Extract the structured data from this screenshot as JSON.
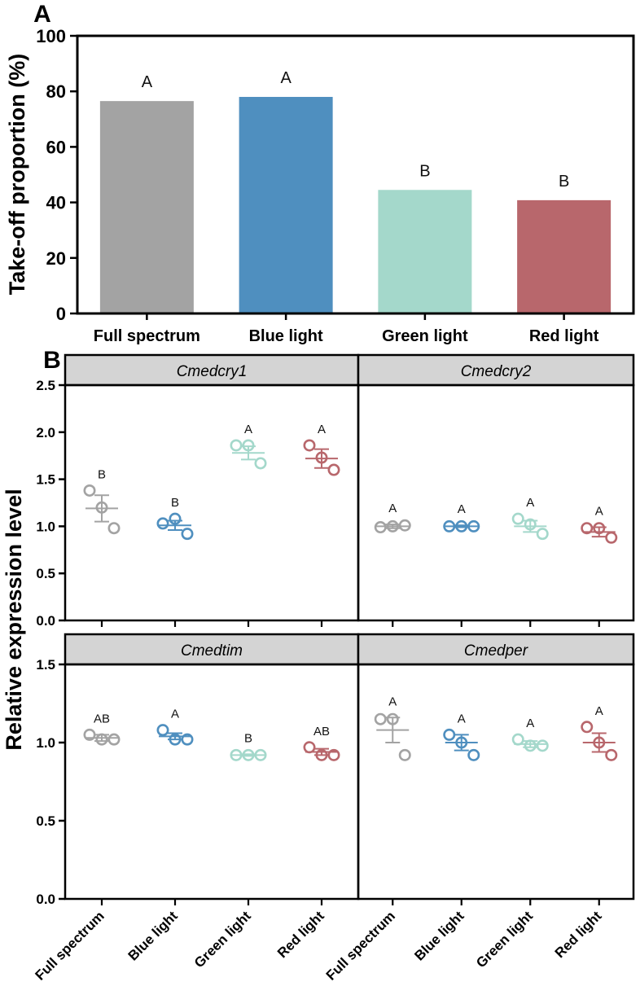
{
  "chart_data": [
    {
      "id": "A",
      "panel_label": "A",
      "type": "bar",
      "ylabel": "Take-off proportion (%)",
      "ylim": [
        0,
        100
      ],
      "yticks": [
        "0",
        "20",
        "40",
        "60",
        "80",
        "100"
      ],
      "categories": [
        "Full spectrum",
        "Blue light",
        "Green light",
        "Red light"
      ],
      "values": [
        76.5,
        78,
        44.5,
        40.8
      ],
      "significance": [
        "A",
        "A",
        "B",
        "B"
      ],
      "colors": [
        "#a3a3a3",
        "#4f8fbf",
        "#a4d8cb",
        "#b8676c"
      ]
    },
    {
      "id": "B",
      "panel_label": "B",
      "type": "scatter",
      "ylabel": "Relative expression level",
      "categories": [
        "Full spectrum",
        "Blue light",
        "Green light",
        "Red light"
      ],
      "colors": [
        "#a3a3a3",
        "#4f8fbf",
        "#a4d8cb",
        "#b8676c"
      ],
      "panels": [
        {
          "title": "Cmedcry1",
          "ylim": [
            0,
            2.5
          ],
          "yticks": [
            "0.0",
            "0.5",
            "1.0",
            "1.5",
            "2.0",
            "2.5"
          ],
          "points": [
            [
              1.38,
              1.2,
              0.98
            ],
            [
              1.03,
              1.08,
              0.92
            ],
            [
              1.86,
              1.86,
              1.67
            ],
            [
              1.86,
              1.73,
              1.6
            ]
          ],
          "mean": [
            1.19,
            1.01,
            1.78,
            1.72
          ],
          "sem": [
            0.14,
            0.05,
            0.07,
            0.1
          ],
          "significance": [
            "B",
            "B",
            "A",
            "A"
          ]
        },
        {
          "title": "Cmedcry2",
          "ylim": [
            0,
            2.5
          ],
          "yticks": [],
          "points": [
            [
              0.99,
              1.0,
              1.01
            ],
            [
              1.0,
              1.0,
              1.0
            ],
            [
              1.08,
              1.02,
              0.92
            ],
            [
              0.98,
              0.98,
              0.88
            ]
          ],
          "mean": [
            1.0,
            1.0,
            1.0,
            0.94
          ],
          "sem": [
            0.02,
            0.01,
            0.06,
            0.05
          ],
          "significance": [
            "A",
            "A",
            "A",
            "A"
          ]
        },
        {
          "title": "Cmedtim",
          "ylim": [
            0,
            1.5
          ],
          "yticks": [
            "0.0",
            "0.5",
            "1.0",
            "1.5"
          ],
          "points": [
            [
              1.05,
              1.02,
              1.02
            ],
            [
              1.08,
              1.02,
              1.02
            ],
            [
              0.92,
              0.92,
              0.92
            ],
            [
              0.97,
              0.92,
              0.92
            ]
          ],
          "mean": [
            1.03,
            1.04,
            0.92,
            0.94
          ],
          "sem": [
            0.02,
            0.02,
            0.005,
            0.02
          ],
          "significance": [
            "AB",
            "A",
            "B",
            "AB"
          ]
        },
        {
          "title": "Cmedper",
          "ylim": [
            0,
            1.5
          ],
          "yticks": [],
          "points": [
            [
              1.15,
              1.15,
              0.92
            ],
            [
              1.05,
              1.0,
              0.92
            ],
            [
              1.02,
              0.98,
              0.98
            ],
            [
              1.1,
              1.0,
              0.92
            ]
          ],
          "mean": [
            1.08,
            1.0,
            0.99,
            1.0
          ],
          "sem": [
            0.08,
            0.05,
            0.02,
            0.06
          ],
          "significance": [
            "A",
            "A",
            "A",
            "A"
          ]
        }
      ]
    }
  ]
}
